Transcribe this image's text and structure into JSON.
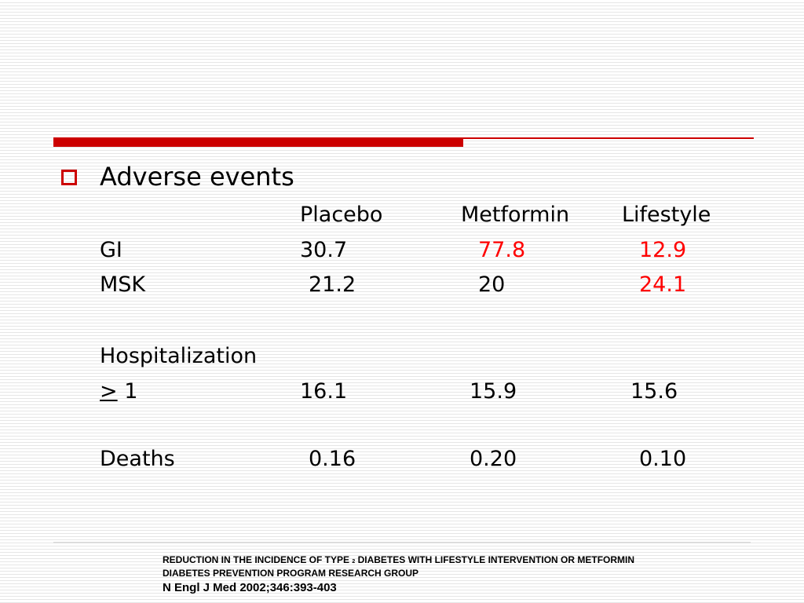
{
  "heading": "Adverse events",
  "table": {
    "columns": [
      "Placebo",
      "Metformin",
      "Lifestyle"
    ],
    "rows": [
      {
        "label": "GI",
        "values": [
          "30.7",
          "77.8",
          "12.9"
        ]
      },
      {
        "label": "MSK",
        "values": [
          "21.2",
          "20",
          "24.1"
        ]
      },
      {
        "label": "Hospitalization",
        "values": []
      },
      {
        "label_symbol": ">",
        "label_rest": " 1",
        "values": [
          "16.1",
          "15.9",
          "15.6"
        ]
      },
      {
        "label": "Deaths",
        "values": [
          "0.16",
          "0.20",
          "0.10"
        ]
      }
    ]
  },
  "colors": {
    "accent": "#cc0000",
    "highlight": "#ff0000"
  },
  "reference": {
    "title_part1": "REDUCTION IN THE INCIDENCE OF TYPE ",
    "title_small": "2",
    "title_part2": " DIABETES WITH LIFESTYLE INTERVENTION OR METFORMIN",
    "group": "DIABETES PREVENTION PROGRAM RESEARCH GROUP",
    "journal": "N Engl J Med 2002;346:393-403"
  }
}
